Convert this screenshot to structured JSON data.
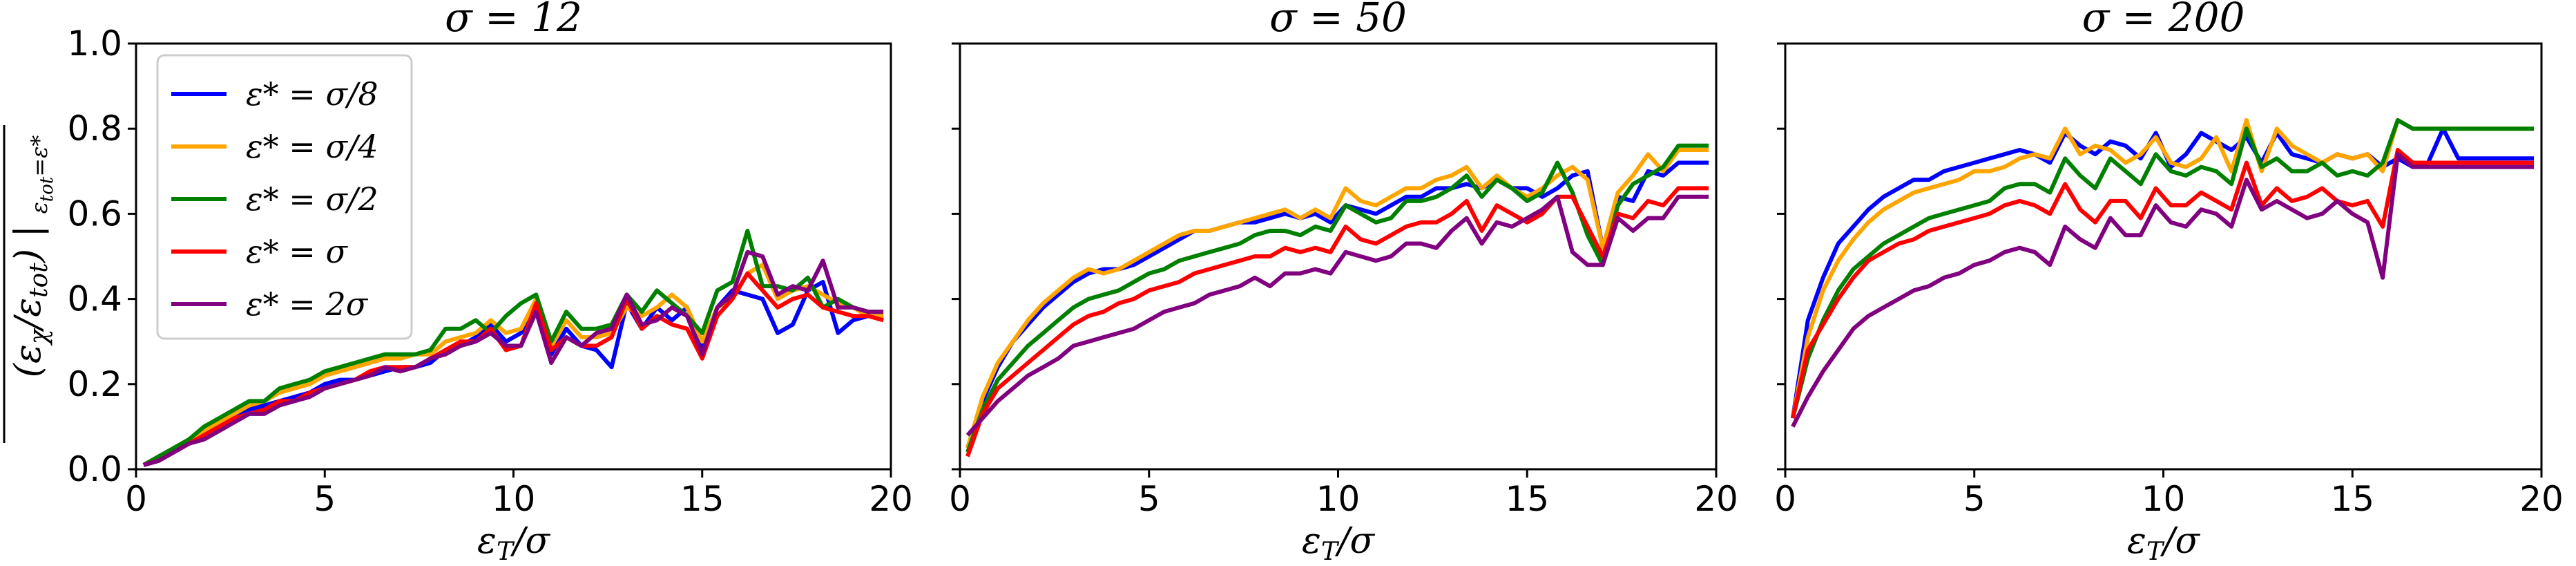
{
  "chart_data": [
    {
      "type": "line",
      "title": "σ = 12",
      "xlabel": "ε_T/σ",
      "ylabel": "(ε_χ/ε_tot)|_{ε_tot=ε*}",
      "xlim": [
        0,
        20
      ],
      "ylim": [
        0,
        1.0
      ],
      "xticks": [
        "0",
        "5",
        "10",
        "15",
        "20"
      ],
      "yticks": [
        "0.0",
        "0.2",
        "0.4",
        "0.6",
        "0.8",
        "1.0"
      ],
      "legend": {
        "placement": "upper-left"
      },
      "x": [
        0.2,
        0.6,
        1.0,
        1.4,
        1.8,
        2.2,
        2.6,
        3.0,
        3.4,
        3.8,
        4.2,
        4.6,
        5.0,
        5.4,
        5.8,
        6.2,
        6.6,
        7.0,
        7.4,
        7.8,
        8.2,
        8.6,
        9.0,
        9.4,
        9.8,
        10.2,
        10.6,
        11.0,
        11.4,
        11.8,
        12.2,
        12.6,
        13.0,
        13.4,
        13.8,
        14.2,
        14.6,
        15.0,
        15.4,
        15.8,
        16.2,
        16.6,
        17.0,
        17.4,
        17.8,
        18.2,
        18.6,
        19.0,
        19.4,
        19.8
      ],
      "series": [
        {
          "name": "ε* = σ/8",
          "color": "#0000ff",
          "values": [
            0.01,
            0.02,
            0.04,
            0.06,
            0.08,
            0.1,
            0.12,
            0.14,
            0.15,
            0.16,
            0.17,
            0.18,
            0.2,
            0.21,
            0.21,
            0.22,
            0.23,
            0.24,
            0.24,
            0.25,
            0.28,
            0.29,
            0.31,
            0.34,
            0.3,
            0.32,
            0.38,
            0.27,
            0.33,
            0.29,
            0.28,
            0.24,
            0.39,
            0.33,
            0.38,
            0.35,
            0.38,
            0.28,
            0.38,
            0.42,
            0.41,
            0.4,
            0.32,
            0.34,
            0.42,
            0.44,
            0.32,
            0.35,
            0.36,
            0.36
          ]
        },
        {
          "name": "ε* = σ/4",
          "color": "#ffa500",
          "values": [
            0.01,
            0.03,
            0.05,
            0.07,
            0.09,
            0.11,
            0.13,
            0.15,
            0.16,
            0.18,
            0.19,
            0.2,
            0.22,
            0.23,
            0.24,
            0.25,
            0.26,
            0.26,
            0.27,
            0.27,
            0.3,
            0.31,
            0.32,
            0.35,
            0.32,
            0.33,
            0.4,
            0.29,
            0.35,
            0.31,
            0.31,
            0.32,
            0.38,
            0.36,
            0.38,
            0.41,
            0.38,
            0.3,
            0.38,
            0.4,
            0.46,
            0.48,
            0.4,
            0.42,
            0.43,
            0.41,
            0.39,
            0.38,
            0.36,
            0.36
          ]
        },
        {
          "name": "ε* = σ/2",
          "color": "#008000",
          "values": [
            0.01,
            0.03,
            0.05,
            0.07,
            0.1,
            0.12,
            0.14,
            0.16,
            0.16,
            0.19,
            0.2,
            0.21,
            0.23,
            0.24,
            0.25,
            0.26,
            0.27,
            0.27,
            0.27,
            0.28,
            0.33,
            0.33,
            0.35,
            0.32,
            0.36,
            0.39,
            0.41,
            0.3,
            0.37,
            0.33,
            0.33,
            0.34,
            0.41,
            0.37,
            0.42,
            0.39,
            0.36,
            0.32,
            0.42,
            0.44,
            0.56,
            0.43,
            0.43,
            0.42,
            0.45,
            0.38,
            0.4,
            0.38,
            0.37,
            0.37
          ]
        },
        {
          "name": "ε* = σ",
          "color": "#ff0000",
          "values": [
            0.01,
            0.02,
            0.04,
            0.06,
            0.08,
            0.1,
            0.12,
            0.13,
            0.14,
            0.16,
            0.16,
            0.18,
            0.19,
            0.2,
            0.21,
            0.23,
            0.24,
            0.24,
            0.24,
            0.26,
            0.28,
            0.3,
            0.3,
            0.33,
            0.28,
            0.29,
            0.39,
            0.28,
            0.31,
            0.29,
            0.29,
            0.31,
            0.4,
            0.33,
            0.36,
            0.34,
            0.33,
            0.26,
            0.36,
            0.4,
            0.46,
            0.42,
            0.38,
            0.4,
            0.41,
            0.38,
            0.37,
            0.36,
            0.36,
            0.35
          ]
        },
        {
          "name": "ε* = 2σ",
          "color": "#800080",
          "values": [
            0.01,
            0.02,
            0.04,
            0.06,
            0.07,
            0.09,
            0.11,
            0.13,
            0.13,
            0.15,
            0.16,
            0.17,
            0.19,
            0.2,
            0.21,
            0.22,
            0.24,
            0.23,
            0.24,
            0.26,
            0.27,
            0.29,
            0.3,
            0.32,
            0.29,
            0.29,
            0.37,
            0.25,
            0.31,
            0.29,
            0.32,
            0.33,
            0.41,
            0.34,
            0.35,
            0.38,
            0.36,
            0.27,
            0.38,
            0.41,
            0.51,
            0.5,
            0.41,
            0.43,
            0.42,
            0.49,
            0.38,
            0.38,
            0.37,
            0.37
          ]
        }
      ]
    },
    {
      "type": "line",
      "title": "σ = 50",
      "xlabel": "ε_T/σ",
      "xlim": [
        0,
        20
      ],
      "ylim": [
        0,
        1.0
      ],
      "xticks": [
        "0",
        "5",
        "10",
        "15",
        "20"
      ],
      "x": [
        0.2,
        0.6,
        1.0,
        1.4,
        1.8,
        2.2,
        2.6,
        3.0,
        3.4,
        3.8,
        4.2,
        4.6,
        5.0,
        5.4,
        5.8,
        6.2,
        6.6,
        7.0,
        7.4,
        7.8,
        8.2,
        8.6,
        9.0,
        9.4,
        9.8,
        10.2,
        10.6,
        11.0,
        11.4,
        11.8,
        12.2,
        12.6,
        13.0,
        13.4,
        13.8,
        14.2,
        14.6,
        15.0,
        15.4,
        15.8,
        16.2,
        16.6,
        17.0,
        17.4,
        17.8,
        18.2,
        18.6,
        19.0,
        19.4,
        19.8
      ],
      "series": [
        {
          "name": "ε* = σ/8",
          "color": "#0000ff",
          "values": [
            0.05,
            0.16,
            0.24,
            0.3,
            0.34,
            0.38,
            0.41,
            0.44,
            0.46,
            0.47,
            0.47,
            0.48,
            0.5,
            0.52,
            0.54,
            0.56,
            0.56,
            0.57,
            0.58,
            0.58,
            0.59,
            0.6,
            0.59,
            0.6,
            0.58,
            0.62,
            0.61,
            0.6,
            0.62,
            0.64,
            0.64,
            0.66,
            0.66,
            0.67,
            0.66,
            0.68,
            0.66,
            0.66,
            0.64,
            0.66,
            0.69,
            0.7,
            0.52,
            0.64,
            0.63,
            0.7,
            0.69,
            0.72,
            0.72,
            0.72
          ]
        },
        {
          "name": "ε* = σ/4",
          "color": "#ffa500",
          "values": [
            0.05,
            0.17,
            0.25,
            0.3,
            0.35,
            0.39,
            0.42,
            0.45,
            0.47,
            0.46,
            0.47,
            0.49,
            0.51,
            0.53,
            0.55,
            0.56,
            0.56,
            0.57,
            0.58,
            0.59,
            0.6,
            0.61,
            0.59,
            0.61,
            0.59,
            0.66,
            0.63,
            0.62,
            0.64,
            0.66,
            0.66,
            0.68,
            0.69,
            0.71,
            0.66,
            0.69,
            0.66,
            0.64,
            0.66,
            0.69,
            0.71,
            0.68,
            0.52,
            0.65,
            0.69,
            0.74,
            0.7,
            0.75,
            0.75,
            0.75
          ]
        },
        {
          "name": "ε* = σ/2",
          "color": "#008000",
          "values": [
            0.04,
            0.14,
            0.21,
            0.25,
            0.29,
            0.32,
            0.35,
            0.38,
            0.4,
            0.41,
            0.42,
            0.44,
            0.46,
            0.47,
            0.49,
            0.5,
            0.51,
            0.52,
            0.53,
            0.55,
            0.56,
            0.56,
            0.55,
            0.57,
            0.56,
            0.62,
            0.6,
            0.58,
            0.59,
            0.63,
            0.63,
            0.64,
            0.66,
            0.69,
            0.64,
            0.68,
            0.66,
            0.63,
            0.65,
            0.72,
            0.65,
            0.55,
            0.48,
            0.62,
            0.67,
            0.69,
            0.71,
            0.76,
            0.76,
            0.76
          ]
        },
        {
          "name": "ε* = σ",
          "color": "#ff0000",
          "values": [
            0.03,
            0.13,
            0.19,
            0.22,
            0.25,
            0.28,
            0.31,
            0.34,
            0.36,
            0.37,
            0.39,
            0.4,
            0.42,
            0.43,
            0.44,
            0.46,
            0.47,
            0.48,
            0.49,
            0.5,
            0.5,
            0.52,
            0.51,
            0.52,
            0.51,
            0.57,
            0.54,
            0.53,
            0.55,
            0.57,
            0.58,
            0.58,
            0.6,
            0.63,
            0.56,
            0.62,
            0.6,
            0.58,
            0.6,
            0.64,
            0.64,
            0.57,
            0.5,
            0.6,
            0.59,
            0.63,
            0.62,
            0.66,
            0.66,
            0.66
          ]
        },
        {
          "name": "ε* = 2σ",
          "color": "#800080",
          "values": [
            0.08,
            0.12,
            0.16,
            0.19,
            0.22,
            0.24,
            0.26,
            0.29,
            0.3,
            0.31,
            0.32,
            0.33,
            0.35,
            0.37,
            0.38,
            0.39,
            0.41,
            0.42,
            0.43,
            0.45,
            0.43,
            0.46,
            0.46,
            0.47,
            0.46,
            0.51,
            0.5,
            0.49,
            0.5,
            0.53,
            0.53,
            0.52,
            0.56,
            0.59,
            0.53,
            0.58,
            0.57,
            0.59,
            0.61,
            0.64,
            0.51,
            0.48,
            0.48,
            0.59,
            0.56,
            0.59,
            0.59,
            0.64,
            0.64,
            0.64
          ]
        }
      ]
    },
    {
      "type": "line",
      "title": "σ = 200",
      "xlabel": "ε_T/σ",
      "xlim": [
        0,
        20
      ],
      "ylim": [
        0,
        1.0
      ],
      "xticks": [
        "0",
        "5",
        "10",
        "15",
        "20"
      ],
      "x": [
        0.2,
        0.6,
        1.0,
        1.4,
        1.8,
        2.2,
        2.6,
        3.0,
        3.4,
        3.8,
        4.2,
        4.6,
        5.0,
        5.4,
        5.8,
        6.2,
        6.6,
        7.0,
        7.4,
        7.8,
        8.2,
        8.6,
        9.0,
        9.4,
        9.8,
        10.2,
        10.6,
        11.0,
        11.4,
        11.8,
        12.2,
        12.6,
        13.0,
        13.4,
        13.8,
        14.2,
        14.6,
        15.0,
        15.4,
        15.8,
        16.2,
        16.6,
        17.0,
        17.4,
        17.8,
        18.2,
        18.6,
        19.0,
        19.4,
        19.8
      ],
      "series": [
        {
          "name": "ε* = σ/8",
          "color": "#0000ff",
          "values": [
            0.12,
            0.35,
            0.45,
            0.53,
            0.57,
            0.61,
            0.64,
            0.66,
            0.68,
            0.68,
            0.7,
            0.71,
            0.72,
            0.73,
            0.74,
            0.75,
            0.74,
            0.72,
            0.79,
            0.76,
            0.74,
            0.77,
            0.76,
            0.73,
            0.79,
            0.71,
            0.74,
            0.79,
            0.77,
            0.75,
            0.78,
            0.72,
            0.79,
            0.74,
            0.73,
            0.72,
            0.74,
            0.73,
            0.74,
            0.71,
            0.73,
            0.71,
            0.72,
            0.8,
            0.73,
            0.73,
            0.73,
            0.73,
            0.73,
            0.73
          ]
        },
        {
          "name": "ε* = σ/4",
          "color": "#ffa500",
          "values": [
            0.12,
            0.31,
            0.42,
            0.49,
            0.54,
            0.58,
            0.61,
            0.63,
            0.65,
            0.66,
            0.67,
            0.68,
            0.7,
            0.7,
            0.71,
            0.73,
            0.74,
            0.73,
            0.8,
            0.74,
            0.76,
            0.75,
            0.72,
            0.74,
            0.78,
            0.72,
            0.71,
            0.73,
            0.78,
            0.7,
            0.82,
            0.7,
            0.8,
            0.76,
            0.74,
            0.72,
            0.74,
            0.73,
            0.74,
            0.7,
            0.82,
            0.8,
            0.8,
            0.8,
            0.8,
            0.8,
            0.8,
            0.8,
            0.8,
            0.8
          ]
        },
        {
          "name": "ε* = σ/2",
          "color": "#008000",
          "values": [
            0.12,
            0.26,
            0.35,
            0.42,
            0.47,
            0.5,
            0.53,
            0.55,
            0.57,
            0.59,
            0.6,
            0.61,
            0.62,
            0.63,
            0.66,
            0.67,
            0.67,
            0.65,
            0.73,
            0.69,
            0.66,
            0.73,
            0.7,
            0.67,
            0.74,
            0.7,
            0.69,
            0.71,
            0.7,
            0.67,
            0.8,
            0.71,
            0.73,
            0.7,
            0.7,
            0.72,
            0.69,
            0.7,
            0.69,
            0.72,
            0.82,
            0.8,
            0.8,
            0.8,
            0.8,
            0.8,
            0.8,
            0.8,
            0.8,
            0.8
          ]
        },
        {
          "name": "ε* = σ",
          "color": "#ff0000",
          "values": [
            0.12,
            0.28,
            0.34,
            0.4,
            0.45,
            0.49,
            0.51,
            0.53,
            0.54,
            0.56,
            0.57,
            0.58,
            0.59,
            0.6,
            0.62,
            0.63,
            0.62,
            0.6,
            0.67,
            0.61,
            0.58,
            0.63,
            0.63,
            0.59,
            0.66,
            0.62,
            0.62,
            0.65,
            0.63,
            0.61,
            0.72,
            0.62,
            0.66,
            0.63,
            0.64,
            0.66,
            0.63,
            0.62,
            0.63,
            0.57,
            0.75,
            0.72,
            0.72,
            0.72,
            0.72,
            0.72,
            0.72,
            0.72,
            0.72,
            0.72
          ]
        },
        {
          "name": "ε* = 2σ",
          "color": "#800080",
          "values": [
            0.1,
            0.17,
            0.23,
            0.28,
            0.33,
            0.36,
            0.38,
            0.4,
            0.42,
            0.43,
            0.45,
            0.46,
            0.48,
            0.49,
            0.51,
            0.52,
            0.51,
            0.48,
            0.57,
            0.54,
            0.52,
            0.59,
            0.55,
            0.55,
            0.62,
            0.58,
            0.57,
            0.61,
            0.6,
            0.57,
            0.68,
            0.61,
            0.63,
            0.61,
            0.59,
            0.6,
            0.63,
            0.6,
            0.58,
            0.45,
            0.74,
            0.71,
            0.71,
            0.71,
            0.71,
            0.71,
            0.71,
            0.71,
            0.71,
            0.71
          ]
        }
      ]
    }
  ]
}
